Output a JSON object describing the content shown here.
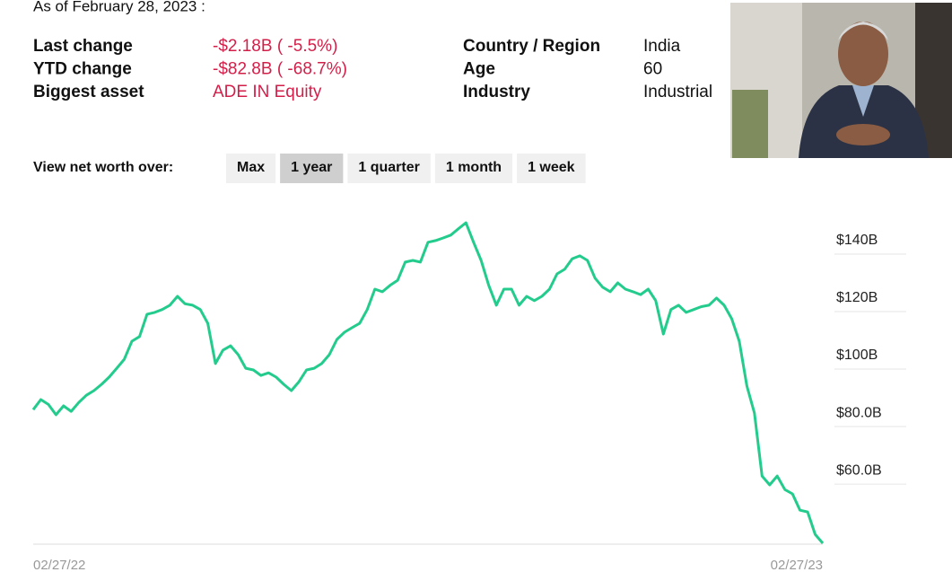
{
  "header": {
    "as_of": "As of February 28, 2023 :"
  },
  "stats": {
    "left": [
      {
        "label": "Last change",
        "value": "-$2.18B ( -5.5%)"
      },
      {
        "label": "YTD change",
        "value": "-$82.8B ( -68.7%)"
      },
      {
        "label": "Biggest asset",
        "value": "ADE IN Equity"
      }
    ],
    "right": [
      {
        "label": "Country / Region",
        "value": "India"
      },
      {
        "label": "Age",
        "value": "60"
      },
      {
        "label": "Industry",
        "value": "Industrial"
      }
    ]
  },
  "controls": {
    "label": "View net worth over:",
    "options": [
      "Max",
      "1 year",
      "1 quarter",
      "1 month",
      "1 week"
    ],
    "selected": 1
  },
  "chart_data": {
    "type": "line",
    "color": "#23cc8c",
    "categories": [
      "02/27/22",
      null,
      null,
      null,
      null,
      null,
      null,
      null,
      null,
      null,
      null,
      null,
      null,
      null,
      null,
      null,
      null,
      null,
      null,
      null,
      null,
      null,
      null,
      null,
      null,
      null,
      null,
      null,
      null,
      null,
      null,
      null,
      null,
      null,
      null,
      null,
      null,
      null,
      null,
      null,
      null,
      null,
      null,
      null,
      null,
      null,
      null,
      null,
      null,
      null,
      null,
      null,
      null,
      null,
      null,
      null,
      null,
      null,
      null,
      null,
      null,
      null,
      null,
      null,
      null,
      null,
      null,
      null,
      null,
      null,
      null,
      null,
      null,
      null,
      null,
      null,
      null,
      null,
      null,
      null,
      null,
      null,
      null,
      null,
      null,
      null,
      null,
      null,
      null,
      null,
      null,
      null,
      null,
      null,
      null,
      null,
      null,
      null,
      null,
      null,
      null,
      null,
      null,
      null,
      "02/27/23"
    ],
    "values": [
      85.9,
      89.4,
      87.7,
      84.1,
      87.2,
      85.3,
      88.4,
      90.9,
      92.5,
      94.7,
      97.2,
      100.3,
      103.4,
      109.7,
      111.3,
      119.1,
      119.7,
      120.7,
      122.2,
      125.3,
      122.7,
      122.2,
      120.7,
      115.9,
      101.9,
      106.6,
      108.1,
      105,
      100.3,
      99.7,
      97.8,
      98.7,
      97.2,
      94.7,
      92.5,
      95.6,
      99.7,
      100.3,
      101.9,
      105,
      110.3,
      112.8,
      114.4,
      115.9,
      120.7,
      127.8,
      126.9,
      129.1,
      130.9,
      137.2,
      137.8,
      137.2,
      144.1,
      144.7,
      145.6,
      146.6,
      148.8,
      150.9,
      144.1,
      137.8,
      129.1,
      122.2,
      127.8,
      127.8,
      122.2,
      125.3,
      123.8,
      125.3,
      127.8,
      133.1,
      134.7,
      138.4,
      139.4,
      137.8,
      131.6,
      128.5,
      126.9,
      130,
      127.8,
      126.9,
      125.9,
      127.8,
      123.8,
      112.2,
      120.7,
      122.2,
      119.7,
      120.7,
      121.7,
      122.2,
      124.7,
      122.2,
      117.5,
      109.7,
      94.1,
      84.7,
      62.8,
      59.7,
      62.8,
      58.1,
      56.6,
      50.9,
      50.3,
      42.5,
      39.4
    ],
    "ylim": [
      39.1,
      158.1
    ],
    "yticks": [
      {
        "value": 140,
        "label": "$140B"
      },
      {
        "value": 120,
        "label": "$120B"
      },
      {
        "value": 100,
        "label": "$100B"
      },
      {
        "value": 80,
        "label": "$80.0B"
      },
      {
        "value": 60,
        "label": "$60.0B"
      }
    ],
    "grid": true
  }
}
